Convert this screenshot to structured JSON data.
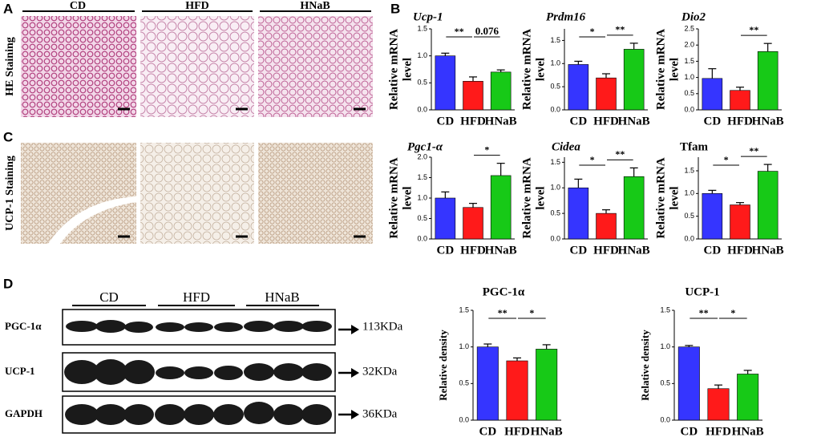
{
  "panel_labels": [
    "A",
    "B",
    "C",
    "D"
  ],
  "staining": {
    "groups": [
      "CD",
      "HFD",
      "HNaB"
    ],
    "rows": [
      "HE Staining",
      "UCP-1 Staining"
    ]
  },
  "blot": {
    "groups": [
      "CD",
      "HFD",
      "HNaB"
    ],
    "rows": [
      {
        "label": "PGC-1α",
        "size": "113KDa"
      },
      {
        "label": "UCP-1",
        "size": "32KDa"
      },
      {
        "label": "GAPDH",
        "size": "36KDa"
      }
    ]
  },
  "chart_data": [
    {
      "type": "bar",
      "title": "Ucp-1",
      "title_italic": true,
      "y_label": [
        "Relative mRNA",
        "level"
      ],
      "categories": [
        "CD",
        "HFD",
        "HNaB"
      ],
      "values": [
        1.0,
        0.53,
        0.7
      ],
      "errors": [
        0.05,
        0.08,
        0.04
      ],
      "colors": [
        "#3535ff",
        "#ff1a1a",
        "#17c917"
      ],
      "ylim": [
        0,
        1.5
      ],
      "yticks": [
        {
          "value": 0,
          "label": "0.0"
        },
        {
          "value": 0.5,
          "label": "0.5"
        },
        {
          "value": 1,
          "label": "1.0"
        },
        {
          "value": 1.5,
          "label": "1.5"
        }
      ],
      "significance": [
        "**",
        "0.076"
      ]
    },
    {
      "type": "bar",
      "title": "Prdm16",
      "title_italic": true,
      "y_label": [
        "Relative mRNA",
        "level"
      ],
      "categories": [
        "CD",
        "HFD",
        "HNaB"
      ],
      "values": [
        0.98,
        0.69,
        1.31
      ],
      "errors": [
        0.07,
        0.09,
        0.13
      ],
      "colors": [
        "#3535ff",
        "#ff1a1a",
        "#17c917"
      ],
      "ylim": [
        0,
        1.75
      ],
      "yticks": [
        {
          "value": 0,
          "label": "0.0"
        },
        {
          "value": 0.5,
          "label": "0.5"
        },
        {
          "value": 1,
          "label": "1.0"
        },
        {
          "value": 1.5,
          "label": "1.5"
        }
      ],
      "significance": [
        "*",
        "**"
      ]
    },
    {
      "type": "bar",
      "title": "Dio2",
      "title_italic": true,
      "y_label": [
        "Relative mRNA",
        "level"
      ],
      "categories": [
        "CD",
        "HFD",
        "HNaB"
      ],
      "values": [
        0.97,
        0.6,
        1.8
      ],
      "errors": [
        0.3,
        0.1,
        0.25
      ],
      "colors": [
        "#3535ff",
        "#ff1a1a",
        "#17c917"
      ],
      "ylim": [
        0,
        2.5
      ],
      "yticks": [
        {
          "value": 0,
          "label": "0.0"
        },
        {
          "value": 0.5,
          "label": "0.5"
        },
        {
          "value": 1,
          "label": "1.0"
        },
        {
          "value": 1.5,
          "label": "1.5"
        },
        {
          "value": 2,
          "label": "2.0"
        },
        {
          "value": 2.5,
          "label": "2.5"
        }
      ],
      "significance": [
        null,
        "**"
      ]
    },
    {
      "type": "bar",
      "title": "Pgc1-α",
      "title_italic": true,
      "y_label": [
        "Relative mRNA",
        "level"
      ],
      "categories": [
        "CD",
        "HFD",
        "HNaB"
      ],
      "values": [
        1.0,
        0.77,
        1.55
      ],
      "errors": [
        0.15,
        0.1,
        0.3
      ],
      "colors": [
        "#3535ff",
        "#ff1a1a",
        "#17c917"
      ],
      "ylim": [
        0,
        2.0
      ],
      "yticks": [
        {
          "value": 0,
          "label": "0.0"
        },
        {
          "value": 0.5,
          "label": "0.5"
        },
        {
          "value": 1,
          "label": "1.0"
        },
        {
          "value": 1.5,
          "label": "1.5"
        },
        {
          "value": 2,
          "label": "2.0"
        }
      ],
      "significance": [
        null,
        "*"
      ]
    },
    {
      "type": "bar",
      "title": "Cidea",
      "title_italic": true,
      "y_label": [
        "Relative mRNA",
        "level"
      ],
      "categories": [
        "CD",
        "HFD",
        "HNaB"
      ],
      "values": [
        1.0,
        0.5,
        1.22
      ],
      "errors": [
        0.17,
        0.07,
        0.17
      ],
      "colors": [
        "#3535ff",
        "#ff1a1a",
        "#17c917"
      ],
      "ylim": [
        0,
        1.6
      ],
      "yticks": [
        {
          "value": 0,
          "label": "0.0"
        },
        {
          "value": 0.5,
          "label": "0.5"
        },
        {
          "value": 1,
          "label": "1.0"
        },
        {
          "value": 1.5,
          "label": "1.5"
        }
      ],
      "significance": [
        "*",
        "**"
      ]
    },
    {
      "type": "bar",
      "title": "Tfam",
      "title_italic": false,
      "y_label": [
        "Relative mRNA",
        "level"
      ],
      "categories": [
        "CD",
        "HFD",
        "HNaB"
      ],
      "values": [
        1.0,
        0.75,
        1.49
      ],
      "errors": [
        0.07,
        0.05,
        0.15
      ],
      "colors": [
        "#3535ff",
        "#ff1a1a",
        "#17c917"
      ],
      "ylim": [
        0,
        1.8
      ],
      "yticks": [
        {
          "value": 0,
          "label": "0.0"
        },
        {
          "value": 0.5,
          "label": "0.5"
        },
        {
          "value": 1,
          "label": "1.0"
        },
        {
          "value": 1.5,
          "label": "1.5"
        }
      ],
      "significance": [
        "*",
        "**"
      ]
    },
    {
      "type": "bar",
      "title": "PGC-1α",
      "title_italic": false,
      "y_label": [
        "Relative density"
      ],
      "categories": [
        "CD",
        "HFD",
        "HNaB"
      ],
      "values": [
        1.0,
        0.81,
        0.97
      ],
      "errors": [
        0.04,
        0.04,
        0.06
      ],
      "colors": [
        "#3535ff",
        "#ff1a1a",
        "#17c917"
      ],
      "ylim": [
        0,
        1.5
      ],
      "yticks": [
        {
          "value": 0,
          "label": "0.0"
        },
        {
          "value": 0.5,
          "label": "0.5"
        },
        {
          "value": 1,
          "label": "1.0"
        },
        {
          "value": 1.5,
          "label": "1.5"
        }
      ],
      "significance": [
        "**",
        "*"
      ]
    },
    {
      "type": "bar",
      "title": "UCP-1",
      "title_italic": false,
      "y_label": [
        "Relative density"
      ],
      "categories": [
        "CD",
        "HFD",
        "HNaB"
      ],
      "values": [
        1.0,
        0.43,
        0.63
      ],
      "errors": [
        0.02,
        0.05,
        0.05
      ],
      "colors": [
        "#3535ff",
        "#ff1a1a",
        "#17c917"
      ],
      "ylim": [
        0,
        1.5
      ],
      "yticks": [
        {
          "value": 0,
          "label": "0.0"
        },
        {
          "value": 0.5,
          "label": "0.5"
        },
        {
          "value": 1,
          "label": "1.0"
        },
        {
          "value": 1.5,
          "label": "1.5"
        }
      ],
      "significance": [
        "**",
        "*"
      ]
    }
  ]
}
